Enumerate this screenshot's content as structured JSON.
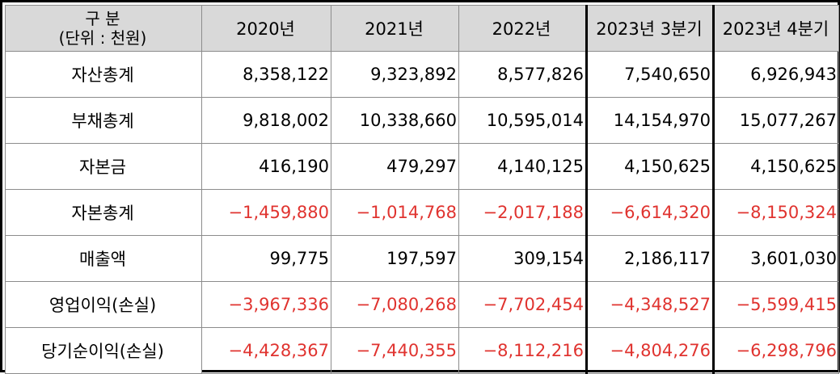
{
  "table": {
    "corner_label_line1": "구 분",
    "corner_label_line2": "(단위 : 천원)",
    "columns": [
      "2020년",
      "2021년",
      "2022년",
      "2023년 3분기",
      "2023년 4분기"
    ],
    "rows": [
      {
        "label": "자산총계",
        "values": [
          "8,358,122",
          "9,323,892",
          "8,577,826",
          "7,540,650",
          "6,926,943"
        ],
        "negative": false
      },
      {
        "label": "부채총계",
        "values": [
          "9,818,002",
          "10,338,660",
          "10,595,014",
          "14,154,970",
          "15,077,267"
        ],
        "negative": false
      },
      {
        "label": "자본금",
        "values": [
          "416,190",
          "479,297",
          "4,140,125",
          "4,150,625",
          "4,150,625"
        ],
        "negative": false
      },
      {
        "label": "자본총계",
        "values": [
          "−1,459,880",
          "−1,014,768",
          "−2,017,188",
          "−6,614,320",
          "−8,150,324"
        ],
        "negative": true
      },
      {
        "label": "매출액",
        "values": [
          "99,775",
          "197,597",
          "309,154",
          "2,186,117",
          "3,601,030"
        ],
        "negative": false
      },
      {
        "label": "영업이익(손실)",
        "values": [
          "−3,967,336",
          "−7,080,268",
          "−7,702,454",
          "−4,348,527",
          "−5,599,415"
        ],
        "negative": true
      },
      {
        "label": "당기순이익(손실)",
        "values": [
          "−4,428,367",
          "−7,440,355",
          "−8,112,216",
          "−4,804,276",
          "−6,298,796"
        ],
        "negative": true
      }
    ]
  },
  "colors": {
    "header_bg": "#d9d9d9",
    "negative_text": "#e0332f",
    "grid_line": "#8c8c8c",
    "frame": "#000000"
  }
}
